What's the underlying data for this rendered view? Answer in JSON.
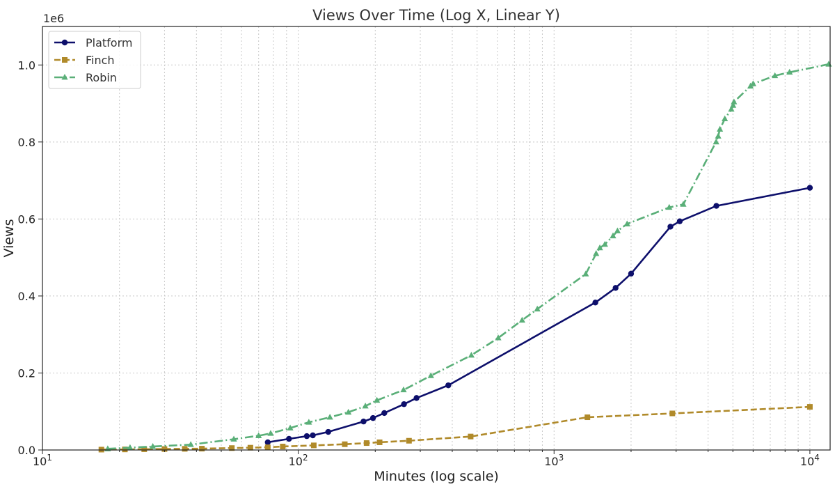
{
  "chart_data": {
    "type": "line",
    "title": "Views Over Time (Log X, Linear Y)",
    "xlabel": "Minutes (log scale)",
    "ylabel": "Views",
    "xscale": "log",
    "xlim": [
      10,
      12000
    ],
    "ylim": [
      0,
      1100000
    ],
    "x_ticks": [
      {
        "value": 10,
        "base": "10",
        "exp": "1"
      },
      {
        "value": 100,
        "base": "10",
        "exp": "2"
      },
      {
        "value": 1000,
        "base": "10",
        "exp": "3"
      },
      {
        "value": 10000,
        "base": "10",
        "exp": "4"
      }
    ],
    "y_ticks": [
      {
        "value": 0,
        "label": "0.0"
      },
      {
        "value": 200000,
        "label": "0.2"
      },
      {
        "value": 400000,
        "label": "0.4"
      },
      {
        "value": 600000,
        "label": "0.6"
      },
      {
        "value": 800000,
        "label": "0.8"
      },
      {
        "value": 1000000,
        "label": "1.0"
      }
    ],
    "y_offset_label": "1e6",
    "grid": true,
    "legend_position": "top-left",
    "series": [
      {
        "name": "Platform",
        "color": "#0d0f6b",
        "line_style": "solid",
        "marker": "circle",
        "points": [
          [
            76,
            20000
          ],
          [
            92,
            29000
          ],
          [
            108,
            36000
          ],
          [
            114,
            38000
          ],
          [
            131,
            47000
          ],
          [
            180,
            74000
          ],
          [
            196,
            83000
          ],
          [
            217,
            96000
          ],
          [
            259,
            119000
          ],
          [
            290,
            135000
          ],
          [
            386,
            168000
          ],
          [
            1450,
            383000
          ],
          [
            1740,
            421000
          ],
          [
            2000,
            458000
          ],
          [
            2850,
            580000
          ],
          [
            3100,
            594000
          ],
          [
            4310,
            634000
          ],
          [
            10000,
            681000
          ]
        ]
      },
      {
        "name": "Finch",
        "color": "#b08a2a",
        "line_style": "dashed",
        "marker": "square",
        "points": [
          [
            17,
            1000
          ],
          [
            21,
            1500
          ],
          [
            25,
            2000
          ],
          [
            30,
            2500
          ],
          [
            36,
            3000
          ],
          [
            42,
            3500
          ],
          [
            55,
            5000
          ],
          [
            65,
            6000
          ],
          [
            76,
            7000
          ],
          [
            87,
            9000
          ],
          [
            115,
            12000
          ],
          [
            152,
            15000
          ],
          [
            185,
            18000
          ],
          [
            208,
            20000
          ],
          [
            271,
            24000
          ],
          [
            472,
            35000
          ],
          [
            1350,
            85000
          ],
          [
            2900,
            95000
          ],
          [
            10000,
            112000
          ]
        ]
      },
      {
        "name": "Robin",
        "color": "#5aaf78",
        "line_style": "dashdot",
        "marker": "triangle",
        "points": [
          [
            18,
            3000
          ],
          [
            22,
            6000
          ],
          [
            27,
            9000
          ],
          [
            38,
            14000
          ],
          [
            56,
            28000
          ],
          [
            70,
            37000
          ],
          [
            78,
            43000
          ],
          [
            93,
            57000
          ],
          [
            110,
            72000
          ],
          [
            133,
            85000
          ],
          [
            157,
            98000
          ],
          [
            183,
            114000
          ],
          [
            203,
            129000
          ],
          [
            258,
            156000
          ],
          [
            330,
            193000
          ],
          [
            475,
            246000
          ],
          [
            605,
            291000
          ],
          [
            750,
            337000
          ],
          [
            860,
            366000
          ],
          [
            1330,
            457000
          ],
          [
            1460,
            510000
          ],
          [
            1510,
            525000
          ],
          [
            1580,
            534000
          ],
          [
            1700,
            556000
          ],
          [
            1770,
            569000
          ],
          [
            1930,
            587000
          ],
          [
            2820,
            630000
          ],
          [
            3200,
            638000
          ],
          [
            4300,
            800000
          ],
          [
            4380,
            815000
          ],
          [
            4450,
            833000
          ],
          [
            4650,
            860000
          ],
          [
            4930,
            885000
          ],
          [
            5010,
            895000
          ],
          [
            5050,
            904000
          ],
          [
            5860,
            945000
          ],
          [
            6000,
            951000
          ],
          [
            7300,
            972000
          ],
          [
            8330,
            981000
          ],
          [
            11850,
            1002000
          ]
        ]
      }
    ]
  }
}
